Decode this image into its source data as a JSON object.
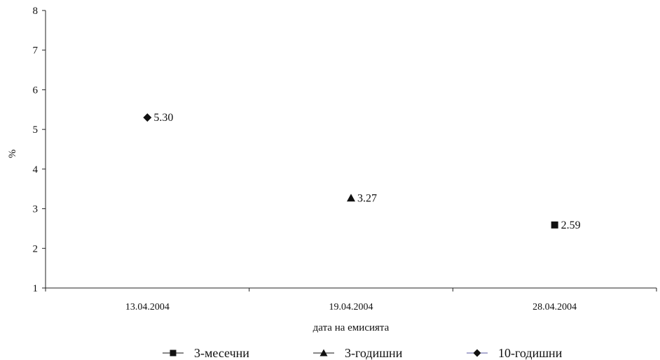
{
  "chart_data": {
    "type": "scatter",
    "xlabel": "дата на емисията",
    "ylabel": "%",
    "categories": [
      "13.04.2004",
      "19.04.2004",
      "28.04.2004"
    ],
    "ylim": [
      1,
      8
    ],
    "yticks": [
      "1",
      "2",
      "3",
      "4",
      "5",
      "6",
      "7",
      "8"
    ],
    "grid": false,
    "legend_position": "bottom",
    "series": [
      {
        "name": "3-месечни",
        "marker": "square",
        "color": "#111111",
        "points": [
          {
            "x": "28.04.2004",
            "y": 2.59,
            "label": "2.59"
          }
        ]
      },
      {
        "name": "3-годишни",
        "marker": "triangle",
        "color": "#111111",
        "points": [
          {
            "x": "19.04.2004",
            "y": 3.27,
            "label": "3.27"
          }
        ]
      },
      {
        "name": "10-годишни",
        "marker": "diamond",
        "color": "#111111",
        "line_color": "#5a5aa0",
        "points": [
          {
            "x": "13.04.2004",
            "y": 5.3,
            "label": "5.30"
          }
        ]
      }
    ]
  }
}
